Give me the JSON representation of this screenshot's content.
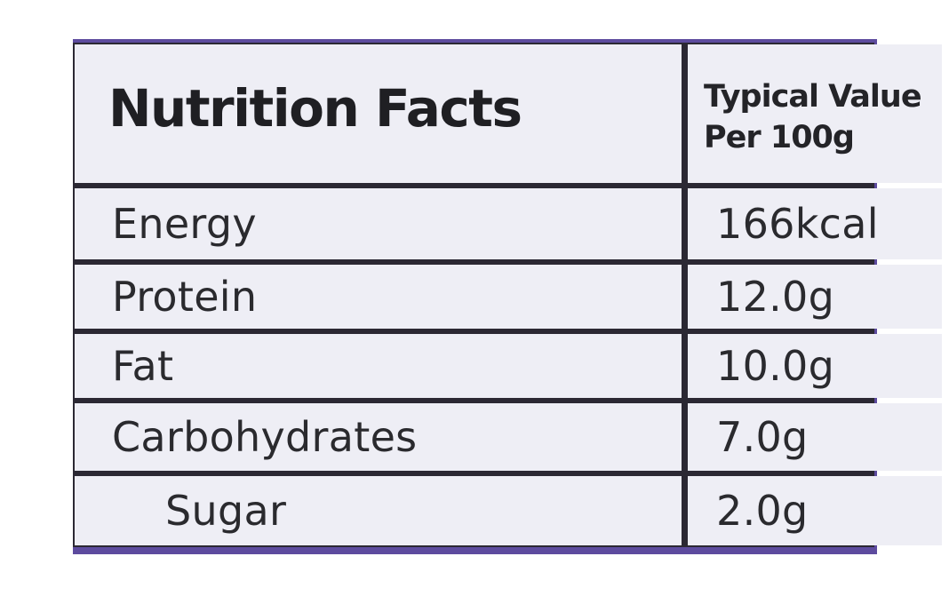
{
  "table": {
    "title": "Nutrition Facts",
    "header_value": [
      "Typical Value",
      "Per 100g"
    ],
    "rows": [
      {
        "label": "Energy",
        "value": "166kcal"
      },
      {
        "label": "Protein",
        "value": "12.0g"
      },
      {
        "label": "Fat",
        "value": "10.0g"
      },
      {
        "label": "Carbohydrates",
        "value": "7.0g"
      },
      {
        "label": "Sugar",
        "value": "2.0g",
        "indented": true
      }
    ]
  },
  "colors": {
    "cell_background": "#eeeef5",
    "grid_line": "#2b2833",
    "border_accent": "#5d4b9e",
    "text": "#2a2a2e"
  }
}
